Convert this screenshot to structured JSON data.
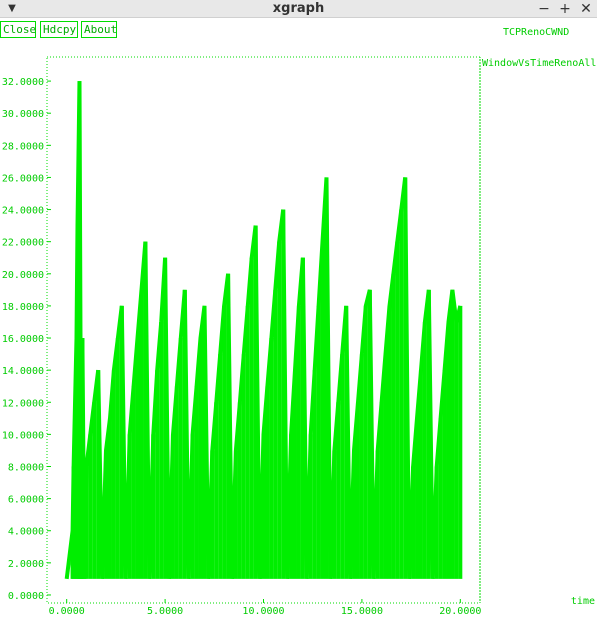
{
  "window": {
    "title": "xgraph",
    "menu_icon": "chevron-down-icon",
    "controls": [
      "minimize-icon",
      "maximize-icon",
      "close-icon"
    ]
  },
  "toolbar": {
    "close_label": "Close",
    "hdcpy_label": "Hdcpy",
    "about_label": "About"
  },
  "plot_title": "TCPRenoCWND",
  "colors": {
    "accent": "#00ee00",
    "text": "#00cc00",
    "background": "#ffffff"
  },
  "chart_data": {
    "type": "line",
    "title": "TCPRenoCWND",
    "xlabel": "time",
    "ylabel": "",
    "xlim": [
      -1.0,
      21.0
    ],
    "ylim": [
      -0.5,
      33.5
    ],
    "x_ticks": [
      "0.0000",
      "5.0000",
      "10.0000",
      "15.0000",
      "20.0000"
    ],
    "x_tick_values": [
      0,
      5,
      10,
      15,
      20
    ],
    "y_ticks": [
      "0.0000",
      "2.0000",
      "4.0000",
      "6.0000",
      "8.0000",
      "10.0000",
      "12.0000",
      "14.0000",
      "16.0000",
      "18.0000",
      "20.0000",
      "22.0000",
      "24.0000",
      "26.0000",
      "28.0000",
      "30.0000",
      "32.0000"
    ],
    "y_tick_values": [
      0,
      2,
      4,
      6,
      8,
      10,
      12,
      14,
      16,
      18,
      20,
      22,
      24,
      26,
      28,
      30,
      32
    ],
    "grid": false,
    "legend_position": "top-right",
    "series": [
      {
        "name": "WindowVsTimeRenoAll",
        "color": "#00ee00",
        "x": [
          0.0,
          0.3,
          0.35,
          0.5,
          0.55,
          0.65,
          0.7,
          0.75,
          0.8,
          0.9,
          1.0,
          1.2,
          1.4,
          1.6,
          1.8,
          2.0,
          2.2,
          2.4,
          2.6,
          2.8,
          3.0,
          3.2,
          3.4,
          3.6,
          3.8,
          4.0,
          4.2,
          4.4,
          4.6,
          4.8,
          5.0,
          5.2,
          5.4,
          5.6,
          5.8,
          6.0,
          6.2,
          6.4,
          6.6,
          6.8,
          7.0,
          7.2,
          7.4,
          7.6,
          7.8,
          8.0,
          8.2,
          8.4,
          8.6,
          8.8,
          9.0,
          9.2,
          9.4,
          9.6,
          9.8,
          10.0,
          10.2,
          10.4,
          10.6,
          10.8,
          11.0,
          11.2,
          11.4,
          11.6,
          11.8,
          12.0,
          12.2,
          12.4,
          12.6,
          12.8,
          13.0,
          13.2,
          13.4,
          13.6,
          13.8,
          14.0,
          14.2,
          14.4,
          14.6,
          14.8,
          15.0,
          15.2,
          15.4,
          15.6,
          15.8,
          16.0,
          16.2,
          16.4,
          16.6,
          16.8,
          17.0,
          17.2,
          17.4,
          17.6,
          17.8,
          18.0,
          18.2,
          18.4,
          18.6,
          18.8,
          19.0,
          19.2,
          19.4,
          19.6,
          19.8,
          20.0
        ],
        "values": [
          1,
          4,
          8,
          16,
          23,
          32,
          16,
          9,
          16,
          1,
          8,
          10,
          12,
          14,
          1,
          9,
          11,
          14,
          16,
          18,
          1,
          10,
          13,
          16,
          19,
          22,
          1,
          10,
          14,
          17,
          21,
          1,
          10,
          13,
          16,
          19,
          1,
          10,
          13,
          16,
          18,
          1,
          9,
          12,
          15,
          18,
          20,
          1,
          9,
          12,
          15,
          18,
          21,
          23,
          1,
          10,
          13,
          16,
          19,
          22,
          24,
          1,
          10,
          14,
          18,
          21,
          1,
          10,
          14,
          18,
          22,
          26,
          1,
          9,
          12,
          15,
          18,
          1,
          9,
          12,
          15,
          18,
          19,
          1,
          9,
          12,
          15,
          18,
          20,
          22,
          24,
          26,
          1,
          8,
          11,
          14,
          17,
          19,
          1,
          8,
          11,
          14,
          17,
          19,
          17,
          18
        ]
      }
    ]
  }
}
